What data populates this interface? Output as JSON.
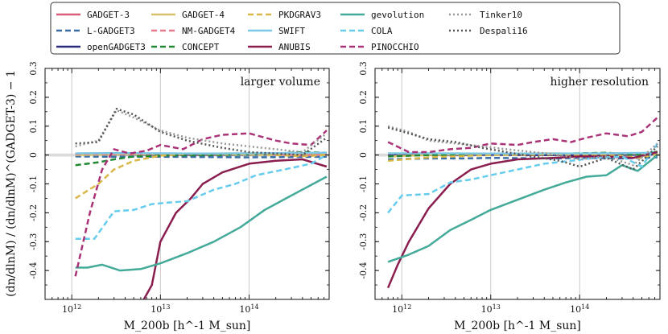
{
  "chart_data": {
    "type": "line",
    "xlabel": "M_200b [h^-1 M_sun]",
    "ylabel": "(dn/dlnM) / (dn/dlnM)^(GADGET-3) − 1",
    "xscale": "log",
    "xlim": [
      500000000000.0,
      800000000000000.0
    ],
    "ylim": [
      -0.5,
      0.3
    ],
    "y_ticks": [
      "-0.4",
      "-0.3",
      "-0.2",
      "-0.1",
      "0",
      "0.1",
      "0.2",
      "0.3"
    ],
    "x_ticks": [
      "10^12",
      "10^13",
      "10^14"
    ],
    "x_tick_exps": [
      "12",
      "13",
      "14"
    ],
    "legend": [
      {
        "name": "GADGET-3",
        "color": "#d95f7a",
        "dash": "solid"
      },
      {
        "name": "L-GADGET3",
        "color": "#3a6ea5",
        "dash": "dashed"
      },
      {
        "name": "openGADGET3",
        "color": "#2a2a7a",
        "dash": "solid"
      },
      {
        "name": "GADGET-4",
        "color": "#d9c36a",
        "dash": "solid"
      },
      {
        "name": "NM-GADGET4",
        "color": "#e87a8a",
        "dash": "dashed"
      },
      {
        "name": "CONCEPT",
        "color": "#228833",
        "dash": "dashed"
      },
      {
        "name": "PKDGRAV3",
        "color": "#d9b84a",
        "dash": "dashed"
      },
      {
        "name": "SWIFT",
        "color": "#7cc8e8",
        "dash": "solid"
      },
      {
        "name": "ANUBIS",
        "color": "#8a1e4e",
        "dash": "solid"
      },
      {
        "name": "gevolution",
        "color": "#44aa99",
        "dash": "solid"
      },
      {
        "name": "COLA",
        "color": "#66ccee",
        "dash": "dashed"
      },
      {
        "name": "PINOCCHIO",
        "color": "#aa3377",
        "dash": "dashed"
      },
      {
        "name": "Tinker10",
        "color": "#999999",
        "dash": "dotted"
      },
      {
        "name": "Despali16",
        "color": "#555555",
        "dash": "dotted"
      }
    ],
    "panels": [
      {
        "title": "larger volume",
        "series": [
          {
            "name": "GADGET-3",
            "x": [
              1100000000000.0,
              3000000000000.0,
              10000000000000.0,
              30000000000000.0,
              100000000000000.0,
              300000000000000.0,
              750000000000000.0
            ],
            "y": [
              0.005,
              0.005,
              0.004,
              0.004,
              0.003,
              0.003,
              0.004
            ]
          },
          {
            "name": "L-GADGET3",
            "x": [
              1100000000000.0,
              3000000000000.0,
              10000000000000.0,
              30000000000000.0,
              100000000000000.0,
              300000000000000.0,
              750000000000000.0
            ],
            "y": [
              -0.005,
              -0.006,
              -0.006,
              -0.007,
              -0.008,
              -0.007,
              -0.006
            ]
          },
          {
            "name": "openGADGET3",
            "x": [
              1100000000000.0,
              3000000000000.0,
              10000000000000.0,
              30000000000000.0,
              100000000000000.0,
              300000000000000.0,
              750000000000000.0
            ],
            "y": [
              0.002,
              0.002,
              0.001,
              0.001,
              0.001,
              0.002,
              0.003
            ]
          },
          {
            "name": "GADGET-4",
            "x": [
              1100000000000.0,
              3000000000000.0,
              10000000000000.0,
              30000000000000.0,
              100000000000000.0,
              300000000000000.0,
              750000000000000.0
            ],
            "y": [
              0.0,
              0.002,
              0.003,
              0.005,
              0.006,
              0.004,
              0.006
            ]
          },
          {
            "name": "NM-GADGET4",
            "x": [
              1100000000000.0,
              2000000000000.0,
              3000000000000.0,
              5000000000000.0,
              10000000000000.0,
              20000000000000.0,
              50000000000000.0,
              100000000000000.0,
              200000000000000.0,
              400000000000000.0,
              750000000000000.0
            ],
            "y": [
              0.003,
              0.004,
              0.004,
              0.003,
              0.003,
              0.004,
              0.003,
              0.004,
              0.002,
              -0.002,
              0.003
            ]
          },
          {
            "name": "CONCEPT",
            "x": [
              1100000000000.0,
              2000000000000.0,
              3000000000000.0,
              5000000000000.0,
              10000000000000.0,
              20000000000000.0,
              50000000000000.0,
              100000000000000.0,
              200000000000000.0,
              400000000000000.0,
              750000000000000.0
            ],
            "y": [
              -0.035,
              -0.025,
              -0.015,
              -0.005,
              -0.002,
              -0.001,
              0.0,
              0.002,
              0.005,
              0.01,
              0.008
            ]
          },
          {
            "name": "PKDGRAV3",
            "x": [
              1100000000000.0,
              2000000000000.0,
              3000000000000.0,
              5000000000000.0,
              10000000000000.0,
              20000000000000.0,
              50000000000000.0,
              100000000000000.0,
              200000000000000.0,
              400000000000000.0,
              750000000000000.0
            ],
            "y": [
              -0.15,
              -0.1,
              -0.05,
              -0.02,
              -0.002,
              0.004,
              0.003,
              0.002,
              0.0,
              -0.004,
              0.0
            ]
          },
          {
            "name": "SWIFT",
            "x": [
              1100000000000.0,
              3000000000000.0,
              10000000000000.0,
              30000000000000.0,
              100000000000000.0,
              300000000000000.0,
              750000000000000.0
            ],
            "y": [
              0.006,
              0.007,
              0.006,
              0.005,
              0.006,
              0.007,
              0.008
            ]
          },
          {
            "name": "ANUBIS",
            "x": [
              6500000000000.0,
              8000000000000.0,
              10000000000000.0,
              15000000000000.0,
              22000000000000.0,
              30000000000000.0,
              50000000000000.0,
              100000000000000.0,
              200000000000000.0,
              400000000000000.0,
              750000000000000.0
            ],
            "y": [
              -0.5,
              -0.45,
              -0.3,
              -0.2,
              -0.15,
              -0.1,
              -0.06,
              -0.03,
              -0.02,
              -0.015,
              -0.04
            ]
          },
          {
            "name": "gevolution",
            "x": [
              1100000000000.0,
              1500000000000.0,
              2200000000000.0,
              3500000000000.0,
              6000000000000.0,
              10000000000000.0,
              20000000000000.0,
              40000000000000.0,
              80000000000000.0,
              150000000000000.0,
              300000000000000.0,
              750000000000000.0
            ],
            "y": [
              -0.39,
              -0.39,
              -0.38,
              -0.4,
              -0.395,
              -0.375,
              -0.34,
              -0.3,
              -0.25,
              -0.19,
              -0.14,
              -0.075
            ]
          },
          {
            "name": "COLA",
            "x": [
              1100000000000.0,
              1800000000000.0,
              3000000000000.0,
              5000000000000.0,
              8000000000000.0,
              12000000000000.0,
              20000000000000.0,
              40000000000000.0,
              70000000000000.0,
              120000000000000.0,
              250000000000000.0,
              500000000000000.0,
              750000000000000.0
            ],
            "y": [
              -0.29,
              -0.29,
              -0.195,
              -0.19,
              -0.17,
              -0.165,
              -0.16,
              -0.12,
              -0.1,
              -0.07,
              -0.05,
              -0.03,
              0.0
            ]
          },
          {
            "name": "PINOCCHIO",
            "x": [
              1100000000000.0,
              1600000000000.0,
              2200000000000.0,
              3000000000000.0,
              4500000000000.0,
              7000000000000.0,
              10000000000000.0,
              18000000000000.0,
              30000000000000.0,
              50000000000000.0,
              100000000000000.0,
              200000000000000.0,
              300000000000000.0,
              500000000000000.0,
              750000000000000.0
            ],
            "y": [
              -0.42,
              -0.2,
              -0.05,
              0.02,
              0.005,
              0.015,
              0.035,
              0.02,
              0.055,
              0.07,
              0.075,
              0.05,
              0.04,
              0.035,
              0.085
            ]
          },
          {
            "name": "Tinker10",
            "x": [
              1100000000000.0,
              2000000000000.0,
              3200000000000.0,
              5000000000000.0,
              10000000000000.0,
              20000000000000.0,
              50000000000000.0,
              100000000000000.0,
              200000000000000.0,
              400000000000000.0,
              750000000000000.0
            ],
            "y": [
              0.03,
              0.05,
              0.155,
              0.13,
              0.085,
              0.06,
              0.04,
              0.03,
              0.02,
              0.01,
              0.075
            ]
          },
          {
            "name": "Despali16",
            "x": [
              1100000000000.0,
              2000000000000.0,
              3200000000000.0,
              5000000000000.0,
              10000000000000.0,
              20000000000000.0,
              50000000000000.0,
              100000000000000.0,
              200000000000000.0,
              400000000000000.0,
              750000000000000.0
            ],
            "y": [
              0.04,
              0.045,
              0.16,
              0.14,
              0.08,
              0.05,
              0.025,
              0.01,
              0.005,
              0.0,
              0.06
            ]
          }
        ]
      },
      {
        "title": "higher resolution",
        "series": [
          {
            "name": "GADGET-3",
            "x": [
              700000000000.0,
              2000000000000.0,
              10000000000000.0,
              50000000000000.0,
              200000000000000.0,
              750000000000000.0
            ],
            "y": [
              0.004,
              0.004,
              0.003,
              0.003,
              0.002,
              0.004
            ]
          },
          {
            "name": "L-GADGET3",
            "x": [
              700000000000.0,
              2000000000000.0,
              5000000000000.0,
              10000000000000.0,
              50000000000000.0,
              100000000000000.0,
              300000000000000.0,
              750000000000000.0
            ],
            "y": [
              -0.015,
              -0.012,
              -0.012,
              -0.01,
              -0.012,
              -0.01,
              -0.012,
              -0.008
            ]
          },
          {
            "name": "openGADGET3",
            "x": [
              700000000000.0,
              2000000000000.0,
              10000000000000.0,
              50000000000000.0,
              200000000000000.0,
              750000000000000.0
            ],
            "y": [
              0.001,
              0.0,
              0.001,
              0.0,
              0.0,
              0.002
            ]
          },
          {
            "name": "GADGET-4",
            "x": [
              700000000000.0,
              2000000000000.0,
              10000000000000.0,
              50000000000000.0,
              200000000000000.0,
              750000000000000.0
            ],
            "y": [
              -0.005,
              0.0,
              0.005,
              0.006,
              0.004,
              0.006
            ]
          },
          {
            "name": "NM-GADGET4",
            "x": [
              700000000000.0,
              2000000000000.0,
              10000000000000.0,
              50000000000000.0,
              200000000000000.0,
              750000000000000.0
            ],
            "y": [
              0.005,
              0.003,
              0.004,
              0.003,
              0.002,
              0.006
            ]
          },
          {
            "name": "CONCEPT",
            "x": [
              700000000000.0,
              2000000000000.0,
              10000000000000.0,
              50000000000000.0,
              200000000000000.0,
              500000000000000.0,
              750000000000000.0
            ],
            "y": [
              -0.005,
              0.0,
              0.004,
              0.004,
              0.008,
              0.0,
              0.012
            ]
          },
          {
            "name": "PKDGRAV3",
            "x": [
              700000000000.0,
              2000000000000.0,
              10000000000000.0,
              50000000000000.0,
              200000000000000.0,
              500000000000000.0,
              750000000000000.0
            ],
            "y": [
              -0.02,
              -0.008,
              0.0,
              0.002,
              0.0,
              -0.01,
              0.005
            ]
          },
          {
            "name": "SWIFT",
            "x": [
              700000000000.0,
              2000000000000.0,
              10000000000000.0,
              50000000000000.0,
              200000000000000.0,
              750000000000000.0
            ],
            "y": [
              0.006,
              0.006,
              0.005,
              0.005,
              0.006,
              0.008
            ]
          },
          {
            "name": "ANUBIS",
            "x": [
              700000000000.0,
              900000000000.0,
              1200000000000.0,
              2000000000000.0,
              3500000000000.0,
              6000000000000.0,
              10000000000000.0,
              20000000000000.0,
              50000000000000.0,
              100000000000000.0,
              200000000000000.0,
              400000000000000.0,
              750000000000000.0
            ],
            "y": [
              -0.46,
              -0.38,
              -0.3,
              -0.185,
              -0.1,
              -0.05,
              -0.03,
              -0.015,
              -0.01,
              -0.005,
              -0.005,
              -0.01,
              0.01
            ]
          },
          {
            "name": "gevolution",
            "x": [
              700000000000.0,
              1200000000000.0,
              2000000000000.0,
              3500000000000.0,
              6000000000000.0,
              10000000000000.0,
              20000000000000.0,
              40000000000000.0,
              70000000000000.0,
              120000000000000.0,
              200000000000000.0,
              300000000000000.0,
              450000000000000.0,
              750000000000000.0
            ],
            "y": [
              -0.37,
              -0.345,
              -0.315,
              -0.26,
              -0.225,
              -0.19,
              -0.155,
              -0.12,
              -0.095,
              -0.075,
              -0.07,
              -0.035,
              -0.055,
              0.0
            ]
          },
          {
            "name": "COLA",
            "x": [
              700000000000.0,
              1000000000000.0,
              2000000000000.0,
              3500000000000.0,
              6000000000000.0,
              10000000000000.0,
              20000000000000.0,
              40000000000000.0,
              80000000000000.0,
              150000000000000.0,
              300000000000000.0,
              500000000000000.0,
              750000000000000.0
            ],
            "y": [
              -0.2,
              -0.14,
              -0.135,
              -0.095,
              -0.085,
              -0.07,
              -0.05,
              -0.03,
              -0.02,
              -0.01,
              -0.005,
              -0.04,
              0.04
            ]
          },
          {
            "name": "PINOCCHIO",
            "x": [
              700000000000.0,
              1200000000000.0,
              2000000000000.0,
              3500000000000.0,
              6000000000000.0,
              10000000000000.0,
              20000000000000.0,
              30000000000000.0,
              50000000000000.0,
              80000000000000.0,
              120000000000000.0,
              200000000000000.0,
              350000000000000.0,
              500000000000000.0,
              750000000000000.0
            ],
            "y": [
              0.045,
              0.01,
              0.01,
              0.02,
              0.025,
              0.04,
              0.035,
              0.045,
              0.055,
              0.045,
              0.06,
              0.075,
              0.065,
              0.08,
              0.13
            ]
          },
          {
            "name": "Tinker10",
            "x": [
              700000000000.0,
              1200000000000.0,
              2000000000000.0,
              4000000000000.0,
              8000000000000.0,
              15000000000000.0,
              30000000000000.0,
              60000000000000.0,
              100000000000000.0,
              200000000000000.0,
              400000000000000.0,
              750000000000000.0
            ],
            "y": [
              0.1,
              0.08,
              0.05,
              0.04,
              0.03,
              0.02,
              0.01,
              0.0,
              -0.015,
              -0.005,
              -0.035,
              0.04
            ]
          },
          {
            "name": "Despali16",
            "x": [
              700000000000.0,
              1200000000000.0,
              2000000000000.0,
              4000000000000.0,
              8000000000000.0,
              15000000000000.0,
              30000000000000.0,
              60000000000000.0,
              100000000000000.0,
              200000000000000.0,
              400000000000000.0,
              750000000000000.0
            ],
            "y": [
              0.095,
              0.075,
              0.055,
              0.045,
              0.025,
              0.01,
              -0.005,
              -0.02,
              -0.04,
              -0.01,
              -0.05,
              0.03
            ]
          }
        ]
      }
    ]
  }
}
